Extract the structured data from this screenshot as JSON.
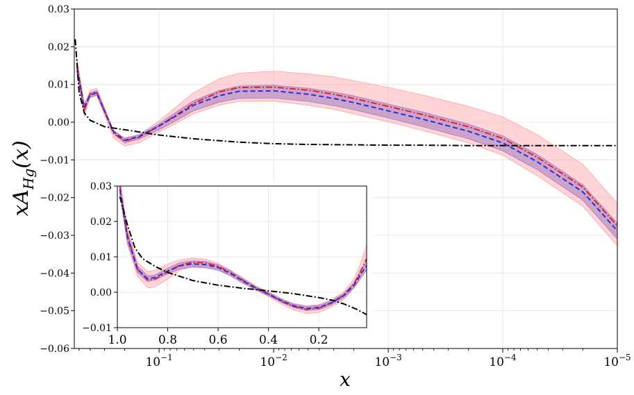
{
  "chart_data": [
    {
      "type": "line",
      "name": "main",
      "xscale": "log-reversed",
      "xlim": [
        0.55,
        1e-05
      ],
      "ylim": [
        -0.06,
        0.03
      ],
      "xlabel": "x",
      "ylabel": "xA_{Hg}(x)",
      "grid": true,
      "yticks": [
        0.03,
        0.02,
        0.01,
        0.0,
        -0.01,
        -0.02,
        -0.03,
        -0.04,
        -0.05,
        -0.06
      ],
      "ytick_labels": [
        "0.03",
        "0.02",
        "0.01",
        "0.00",
        "−0.01",
        "−0.02",
        "−0.03",
        "−0.04",
        "−0.05",
        "−0.06"
      ],
      "xticks": [
        0.1,
        0.01,
        0.001,
        0.0001,
        1e-05
      ],
      "xtick_bases": [
        "10",
        "10",
        "10",
        "10",
        "10"
      ],
      "xtick_exponents": [
        "−1",
        "−2",
        "−3",
        "−4",
        "−5"
      ],
      "series": [
        {
          "name": "red band + dash-dot",
          "style": "dashdot",
          "color": "#e8202a",
          "band_color": "#ff9fa4",
          "x": [
            0.52,
            0.45,
            0.4,
            0.35,
            0.3,
            0.25,
            0.2,
            0.15,
            0.1,
            0.07,
            0.05,
            0.03,
            0.02,
            0.01,
            0.005,
            0.003,
            0.002,
            0.001,
            0.0005,
            0.0002,
            0.0001,
            5e-05,
            2e-05,
            1e-05
          ],
          "values": [
            0.015,
            0.003,
            0.0075,
            0.008,
            0.003,
            -0.003,
            -0.005,
            -0.004,
            -0.001,
            0.002,
            0.005,
            0.008,
            0.0092,
            0.0093,
            0.0085,
            0.0074,
            0.0063,
            0.0042,
            0.002,
            -0.0012,
            -0.0043,
            -0.0093,
            -0.0172,
            -0.0275
          ],
          "upper": [
            0.017,
            0.0045,
            0.0085,
            0.009,
            0.004,
            -0.0025,
            -0.0042,
            -0.0033,
            0.0003,
            0.0042,
            0.0078,
            0.0115,
            0.013,
            0.0135,
            0.0128,
            0.012,
            0.011,
            0.0092,
            0.0072,
            0.0042,
            0.0014,
            -0.0033,
            -0.0112,
            -0.0215
          ],
          "lower": [
            0.013,
            0.0015,
            0.0065,
            0.007,
            0.002,
            -0.0042,
            -0.0063,
            -0.0055,
            -0.0026,
            -0.0002,
            0.0022,
            0.0045,
            0.0055,
            0.0056,
            0.0045,
            0.0034,
            0.0022,
            0.0001,
            -0.0022,
            -0.0055,
            -0.0088,
            -0.0142,
            -0.0223,
            -0.0328
          ]
        },
        {
          "name": "blue band + dashed",
          "style": "dashed",
          "color": "#2b2bdc",
          "band_color": "#a27ac0",
          "x": [
            0.52,
            0.45,
            0.4,
            0.35,
            0.3,
            0.25,
            0.2,
            0.15,
            0.1,
            0.07,
            0.05,
            0.03,
            0.02,
            0.01,
            0.005,
            0.003,
            0.002,
            0.001,
            0.0005,
            0.0002,
            0.0001,
            5e-05,
            2e-05,
            1e-05
          ],
          "values": [
            0.014,
            0.004,
            0.0072,
            0.0078,
            0.003,
            -0.0025,
            -0.0048,
            -0.0038,
            -0.001,
            0.0018,
            0.0045,
            0.007,
            0.0082,
            0.0083,
            0.0074,
            0.0063,
            0.0052,
            0.003,
            0.0008,
            -0.0024,
            -0.0055,
            -0.0105,
            -0.0185,
            -0.0288
          ],
          "upper": [
            0.0155,
            0.0048,
            0.0078,
            0.0084,
            0.0035,
            -0.0021,
            -0.0043,
            -0.0033,
            -0.0004,
            0.0028,
            0.0057,
            0.0084,
            0.0096,
            0.0098,
            0.009,
            0.008,
            0.007,
            0.0048,
            0.0027,
            -0.0005,
            -0.0036,
            -0.0086,
            -0.0166,
            -0.0268
          ],
          "lower": [
            0.0125,
            0.0032,
            0.0066,
            0.0072,
            0.0025,
            -0.003,
            -0.0055,
            -0.0045,
            -0.002,
            0.0005,
            0.003,
            0.0053,
            0.0063,
            0.0064,
            0.0055,
            0.0044,
            0.0033,
            0.0011,
            -0.0012,
            -0.0044,
            -0.0076,
            -0.0126,
            -0.0207,
            -0.031
          ]
        },
        {
          "name": "black dash-dot",
          "style": "dashdot",
          "color": "#000000",
          "x": [
            0.54,
            0.5,
            0.45,
            0.4,
            0.3,
            0.2,
            0.1,
            0.05,
            0.02,
            0.01,
            0.005,
            0.002,
            0.001,
            0.0005,
            0.0002,
            0.0001,
            1e-05
          ],
          "values": [
            0.022,
            0.008,
            0.0025,
            0.0005,
            -0.0012,
            -0.002,
            -0.0034,
            -0.0044,
            -0.0053,
            -0.0057,
            -0.0059,
            -0.006,
            -0.0061,
            -0.0061,
            -0.0062,
            -0.0062,
            -0.0062
          ]
        }
      ]
    },
    {
      "type": "line",
      "name": "inset",
      "xscale": "linear-reversed",
      "xlim": [
        1.0,
        0.01
      ],
      "ylim": [
        -0.01,
        0.03
      ],
      "grid": true,
      "xticks": [
        1.0,
        0.8,
        0.6,
        0.4,
        0.2
      ],
      "xtick_labels": [
        "1.0",
        "0.8",
        "0.6",
        "0.4",
        "0.2"
      ],
      "yticks": [
        0.03,
        0.02,
        0.01,
        0.0,
        -0.01
      ],
      "ytick_labels": [
        "0.03",
        "0.02",
        "0.01",
        "0.00",
        "−0.01"
      ],
      "series": [
        {
          "name": "red band + dash-dot",
          "style": "dashdot",
          "color": "#e8202a",
          "band_color": "#ff9fa4",
          "x": [
            0.99,
            0.96,
            0.92,
            0.88,
            0.85,
            0.8,
            0.75,
            0.7,
            0.65,
            0.6,
            0.55,
            0.5,
            0.45,
            0.4,
            0.35,
            0.3,
            0.25,
            0.2,
            0.15,
            0.1,
            0.06,
            0.03,
            0.01
          ],
          "values": [
            0.03,
            0.016,
            0.0065,
            0.0035,
            0.0037,
            0.0058,
            0.0077,
            0.0085,
            0.0083,
            0.0073,
            0.0055,
            0.0033,
            0.0012,
            -0.0005,
            -0.0025,
            -0.004,
            -0.0048,
            -0.0045,
            -0.003,
            -0.0008,
            0.0025,
            0.0065,
            0.0095
          ],
          "upper": [
            0.032,
            0.018,
            0.0085,
            0.0058,
            0.0062,
            0.008,
            0.0092,
            0.0097,
            0.0093,
            0.0082,
            0.0062,
            0.004,
            0.0018,
            0.0001,
            -0.0018,
            -0.0032,
            -0.0038,
            -0.0035,
            -0.0021,
            0.0002,
            0.0038,
            0.009,
            0.0135
          ],
          "lower": [
            0.028,
            0.0135,
            0.0045,
            0.0012,
            0.0015,
            0.0037,
            0.0062,
            0.0073,
            0.0073,
            0.0064,
            0.0048,
            0.0026,
            0.0006,
            -0.0012,
            -0.0033,
            -0.005,
            -0.006,
            -0.0057,
            -0.0042,
            -0.002,
            0.0012,
            0.004,
            0.0065
          ]
        },
        {
          "name": "blue band + dashed",
          "style": "dashed",
          "color": "#2b2bdc",
          "band_color": "#a27ac0",
          "x": [
            0.99,
            0.96,
            0.92,
            0.88,
            0.85,
            0.8,
            0.75,
            0.7,
            0.65,
            0.6,
            0.55,
            0.5,
            0.45,
            0.4,
            0.35,
            0.3,
            0.25,
            0.2,
            0.15,
            0.1,
            0.06,
            0.03,
            0.01
          ],
          "values": [
            0.029,
            0.0155,
            0.0065,
            0.0038,
            0.0042,
            0.006,
            0.0075,
            0.008,
            0.0078,
            0.007,
            0.0053,
            0.0031,
            0.0011,
            -0.0005,
            -0.0023,
            -0.0038,
            -0.0046,
            -0.0043,
            -0.003,
            -0.0009,
            0.002,
            0.0055,
            0.0075
          ],
          "upper": [
            0.0305,
            0.017,
            0.0075,
            0.0046,
            0.0049,
            0.0068,
            0.0084,
            0.0089,
            0.0087,
            0.0078,
            0.006,
            0.0037,
            0.0016,
            -0.0001,
            -0.0018,
            -0.0033,
            -0.004,
            -0.0037,
            -0.0024,
            -0.0003,
            0.0027,
            0.0064,
            0.0088
          ],
          "lower": [
            0.0275,
            0.014,
            0.0055,
            0.003,
            0.0035,
            0.0052,
            0.0066,
            0.0071,
            0.0069,
            0.0062,
            0.0046,
            0.0025,
            0.0006,
            -0.0009,
            -0.0028,
            -0.0043,
            -0.0052,
            -0.0049,
            -0.0036,
            -0.0015,
            0.0013,
            0.0046,
            0.0062
          ]
        },
        {
          "name": "black dash-dot",
          "style": "dashdot",
          "color": "#000000",
          "x": [
            0.99,
            0.96,
            0.93,
            0.9,
            0.85,
            0.8,
            0.7,
            0.6,
            0.5,
            0.4,
            0.3,
            0.2,
            0.15,
            0.1,
            0.05,
            0.01
          ],
          "values": [
            0.027,
            0.019,
            0.0125,
            0.0095,
            0.0073,
            0.0056,
            0.0033,
            0.002,
            0.0011,
            0.0004,
            -0.0004,
            -0.0015,
            -0.0022,
            -0.0033,
            -0.0048,
            -0.0063
          ]
        }
      ]
    }
  ]
}
